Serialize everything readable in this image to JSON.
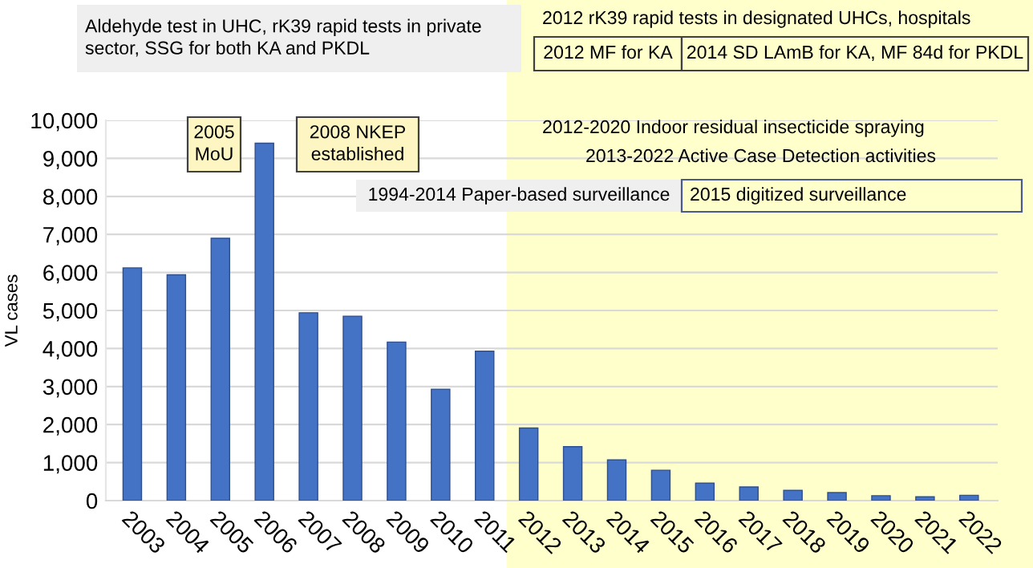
{
  "chart_data": {
    "type": "bar",
    "ylabel": "VL cases",
    "categories": [
      "2003",
      "2004",
      "2005",
      "2006",
      "2007",
      "2008",
      "2009",
      "2010",
      "2011",
      "2012",
      "2013",
      "2014",
      "2015",
      "2016",
      "2017",
      "2018",
      "2019",
      "2020",
      "2021",
      "2022"
    ],
    "values": [
      6120,
      5940,
      6900,
      9400,
      4940,
      4850,
      4170,
      2930,
      3930,
      1910,
      1420,
      1070,
      800,
      460,
      360,
      270,
      210,
      130,
      100,
      140
    ],
    "color": "#4472c4",
    "ylim": [
      0,
      10000
    ],
    "yticks": [
      {
        "value": 0,
        "label": "0"
      },
      {
        "value": 1000,
        "label": "1,000"
      },
      {
        "value": 2000,
        "label": "2,000"
      },
      {
        "value": 3000,
        "label": "3,000"
      },
      {
        "value": 4000,
        "label": "4,000"
      },
      {
        "value": 5000,
        "label": "5,000"
      },
      {
        "value": 6000,
        "label": "6,000"
      },
      {
        "value": 7000,
        "label": "7,000"
      },
      {
        "value": 8000,
        "label": "8,000"
      },
      {
        "value": 9000,
        "label": "9,000"
      },
      {
        "value": 10000,
        "label": "10,000"
      }
    ],
    "grid": "y",
    "bands": [
      {
        "axis": "x",
        "from": "2012",
        "to": "2022",
        "color": "#ffffcc"
      }
    ],
    "annotations": [
      "Aldehyde test in UHC, rK39 rapid tests in private\nsector, SSG for both KA and PKDL",
      "2012 rK39 rapid tests in designated UHCs, hospitals",
      "2012 MF for KA",
      "2014 SD LAmB for KA, MF 84d for PKDL",
      "2005\nMoU",
      "2008 NKEP\nestablished",
      "2012-2020 Indoor residual insecticide spraying",
      "2013-2022 Active Case Detection activities",
      "1994-2014 Paper-based surveillance",
      "2015 digitized surveillance"
    ]
  }
}
